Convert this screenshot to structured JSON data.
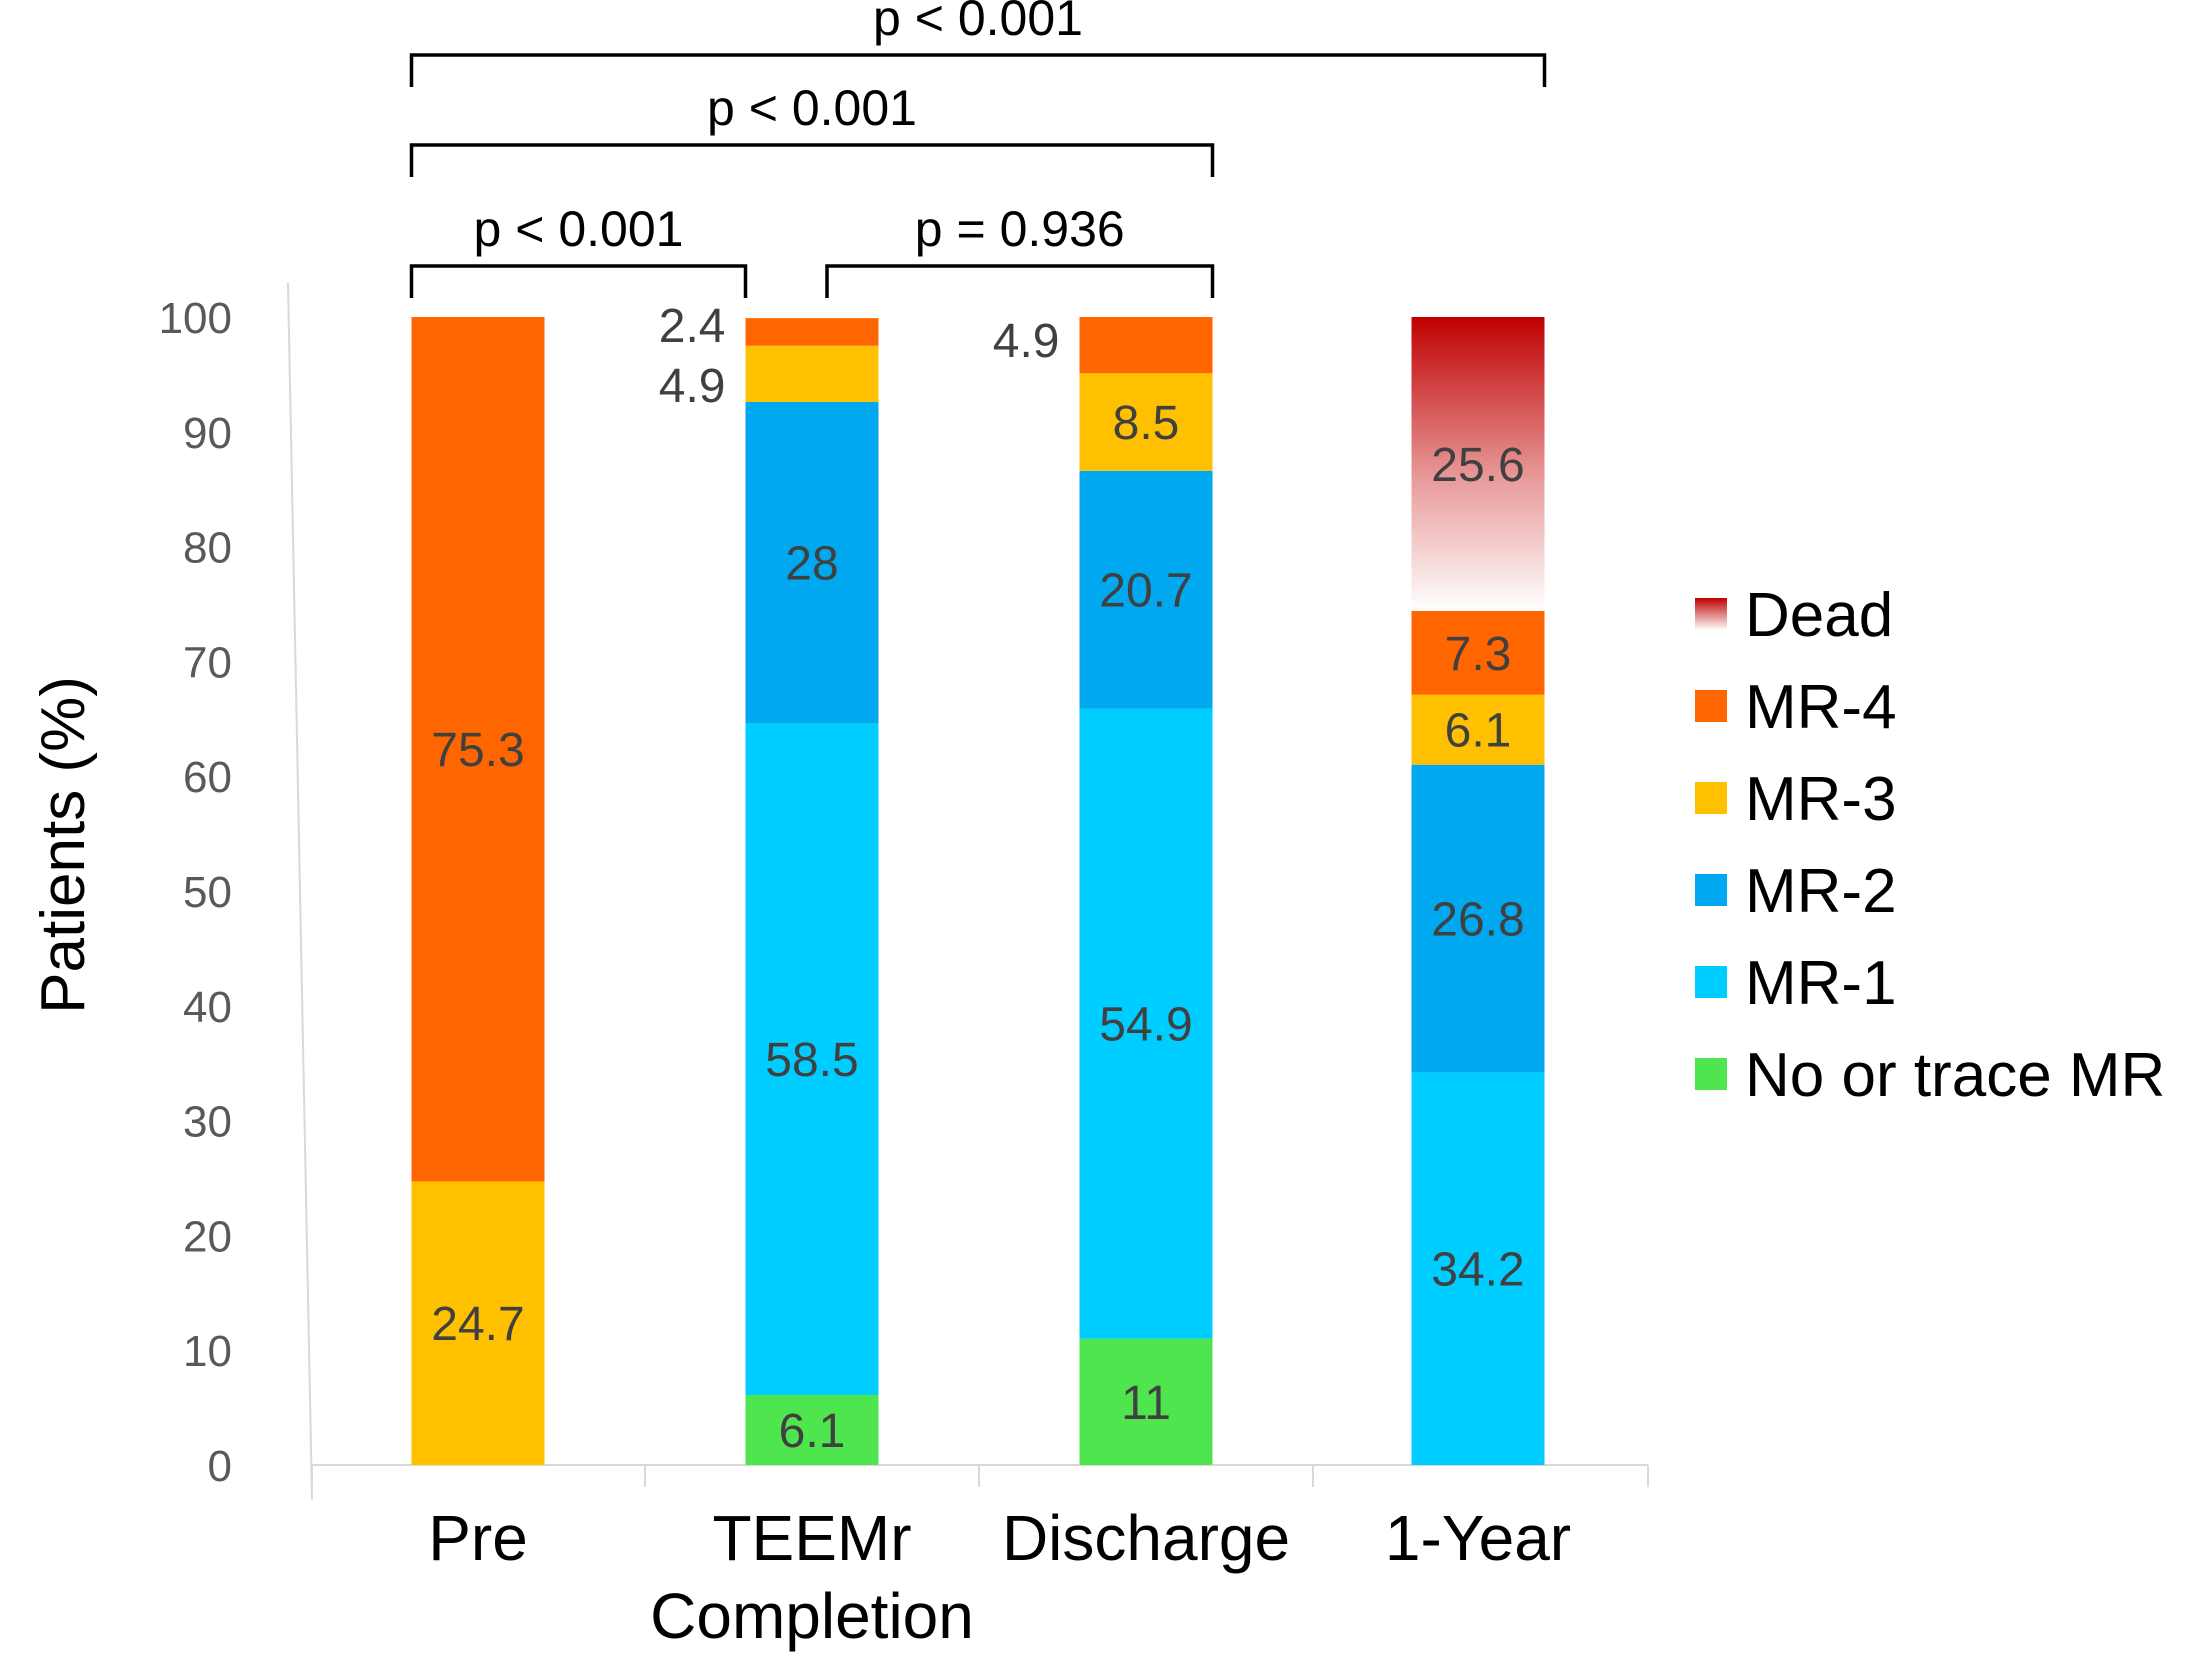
{
  "chart_data": {
    "type": "bar",
    "stacked": true,
    "ylabel": "Patients (%)",
    "xlabel": "",
    "ylim": [
      0,
      100
    ],
    "yticks": [
      0,
      10,
      20,
      30,
      40,
      50,
      60,
      70,
      80,
      90,
      100
    ],
    "categories": [
      [
        "Pre"
      ],
      [
        "TEEMr",
        "Completion"
      ],
      [
        "Discharge"
      ],
      [
        "1-Year"
      ]
    ],
    "series": [
      {
        "name": "No or trace MR",
        "color": "#4ee54e",
        "values": [
          0,
          6.1,
          11,
          0
        ]
      },
      {
        "name": "MR-1",
        "color": "#00cdff",
        "values": [
          0,
          58.5,
          54.9,
          34.2
        ]
      },
      {
        "name": "MR-2",
        "color": "#00a8f0",
        "values": [
          0,
          28,
          20.7,
          26.8
        ]
      },
      {
        "name": "MR-3",
        "color": "#ffc000",
        "values": [
          24.7,
          4.9,
          8.5,
          6.1
        ]
      },
      {
        "name": "MR-4",
        "color": "#ff6600",
        "values": [
          75.3,
          2.4,
          4.9,
          7.3
        ]
      },
      {
        "name": "Dead",
        "color": "#c00000",
        "gradient": true,
        "values": [
          0,
          0,
          0,
          25.6
        ]
      }
    ],
    "data_labels": [
      {
        "category": 0,
        "series": "MR-3",
        "text": "24.7"
      },
      {
        "category": 0,
        "series": "MR-4",
        "text": "75.3"
      },
      {
        "category": 1,
        "series": "No or trace MR",
        "text": "6.1"
      },
      {
        "category": 1,
        "series": "MR-1",
        "text": "58.5"
      },
      {
        "category": 1,
        "series": "MR-2",
        "text": "28"
      },
      {
        "category": 1,
        "series": "MR-3",
        "text": "4.9",
        "outside": true
      },
      {
        "category": 1,
        "series": "MR-4",
        "text": "2.4",
        "outside": true
      },
      {
        "category": 2,
        "series": "No or trace MR",
        "text": "11"
      },
      {
        "category": 2,
        "series": "MR-1",
        "text": "54.9"
      },
      {
        "category": 2,
        "series": "MR-2",
        "text": "20.7"
      },
      {
        "category": 2,
        "series": "MR-3",
        "text": "8.5"
      },
      {
        "category": 2,
        "series": "MR-4",
        "text": "4.9",
        "outside": true
      },
      {
        "category": 3,
        "series": "MR-1",
        "text": "34.2"
      },
      {
        "category": 3,
        "series": "MR-2",
        "text": "26.8"
      },
      {
        "category": 3,
        "series": "MR-3",
        "text": "6.1"
      },
      {
        "category": 3,
        "series": "MR-4",
        "text": "7.3"
      },
      {
        "category": 3,
        "series": "Dead",
        "text": "25.6"
      }
    ],
    "annotations": [
      {
        "from": 0,
        "to": 1,
        "text": "p < 0.001"
      },
      {
        "from": 1,
        "to": 2,
        "text": "p = 0.936"
      },
      {
        "from": 0,
        "to": 2,
        "text": "p < 0.001"
      },
      {
        "from": 0,
        "to": 3,
        "text": "p < 0.001"
      }
    ],
    "legend": {
      "position": "right",
      "order": [
        "Dead",
        "MR-4",
        "MR-3",
        "MR-2",
        "MR-1",
        "No or trace MR"
      ]
    },
    "grid": false
  }
}
